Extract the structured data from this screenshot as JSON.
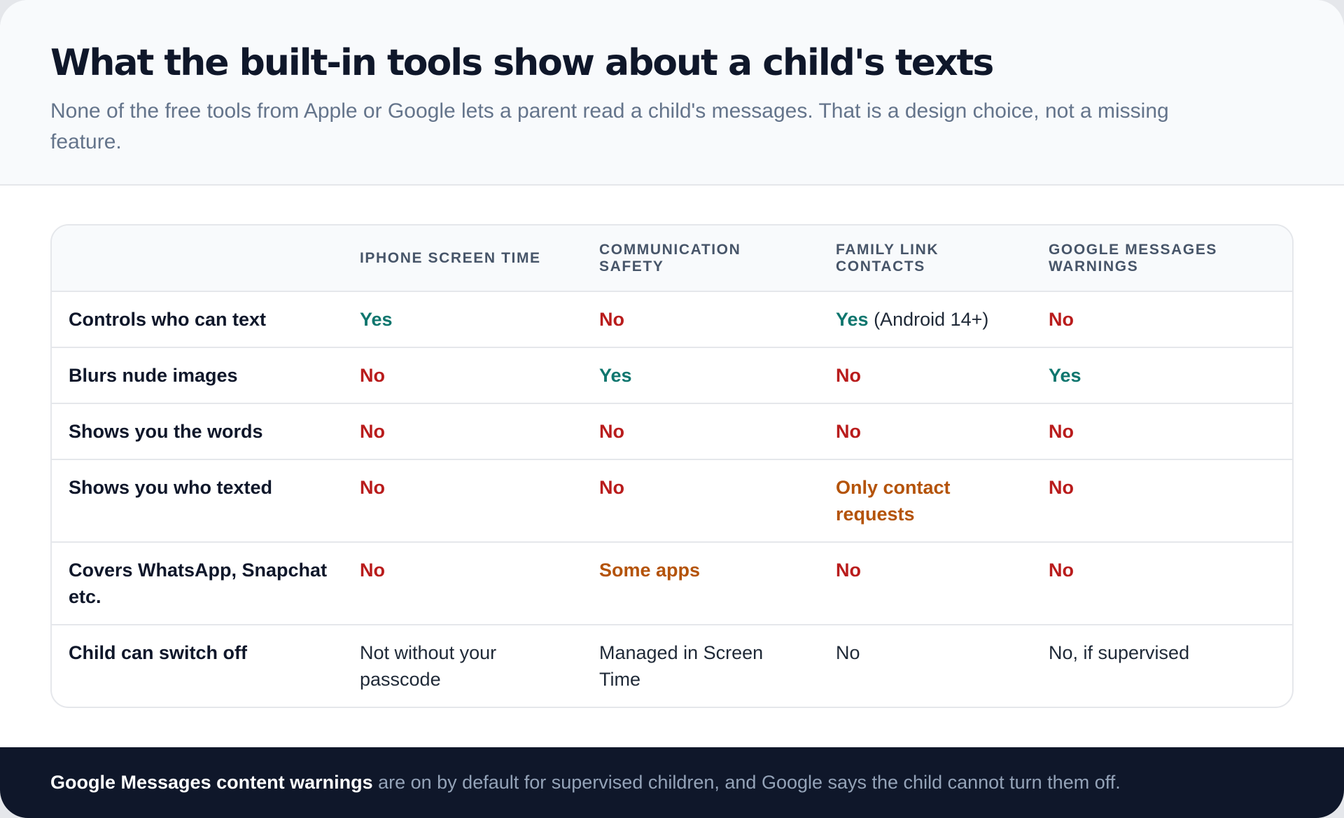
{
  "header": {
    "title": "What the built-in tools show about a child's texts",
    "subtitle": "None of the free tools from Apple or Google lets a parent read a child's messages. That is a design choice, not a missing feature."
  },
  "table": {
    "columns": [
      "",
      "iPhone Screen Time",
      "Communication Safety",
      "Family Link contacts",
      "Google Messages warnings"
    ],
    "rows": [
      {
        "label": "Controls who can text",
        "cells": [
          {
            "text": "Yes",
            "status": "yes"
          },
          {
            "text": "No",
            "status": "no"
          },
          {
            "text": "Yes",
            "status": "yes",
            "note": " (Android 14+)"
          },
          {
            "text": "No",
            "status": "no"
          }
        ]
      },
      {
        "label": "Blurs nude images",
        "cells": [
          {
            "text": "No",
            "status": "no"
          },
          {
            "text": "Yes",
            "status": "yes"
          },
          {
            "text": "No",
            "status": "no"
          },
          {
            "text": "Yes",
            "status": "yes"
          }
        ]
      },
      {
        "label": "Shows you the words",
        "cells": [
          {
            "text": "No",
            "status": "no"
          },
          {
            "text": "No",
            "status": "no"
          },
          {
            "text": "No",
            "status": "no"
          },
          {
            "text": "No",
            "status": "no"
          }
        ]
      },
      {
        "label": "Shows you who texted",
        "cells": [
          {
            "text": "No",
            "status": "no"
          },
          {
            "text": "No",
            "status": "no"
          },
          {
            "text": "Only contact requests",
            "status": "partial"
          },
          {
            "text": "No",
            "status": "no"
          }
        ]
      },
      {
        "label": "Covers WhatsApp, Snapchat etc.",
        "cells": [
          {
            "text": "No",
            "status": "no"
          },
          {
            "text": "Some apps",
            "status": "partial"
          },
          {
            "text": "No",
            "status": "no"
          },
          {
            "text": "No",
            "status": "no"
          }
        ]
      },
      {
        "label": "Child can switch off",
        "cells": [
          {
            "text": "Not without your passcode",
            "status": "plain"
          },
          {
            "text": "Managed in Screen Time",
            "status": "plain"
          },
          {
            "text": "No",
            "status": "plain"
          },
          {
            "text": "No, if supervised",
            "status": "plain"
          }
        ]
      }
    ]
  },
  "footer": {
    "strong": "Google Messages content warnings",
    "text": " are on by default for supervised children, and Google says the child cannot turn them off."
  },
  "colors": {
    "yes": "#0f766e",
    "no": "#b91c1c",
    "partial": "#b45309",
    "footer_bg": "#0f172a"
  }
}
